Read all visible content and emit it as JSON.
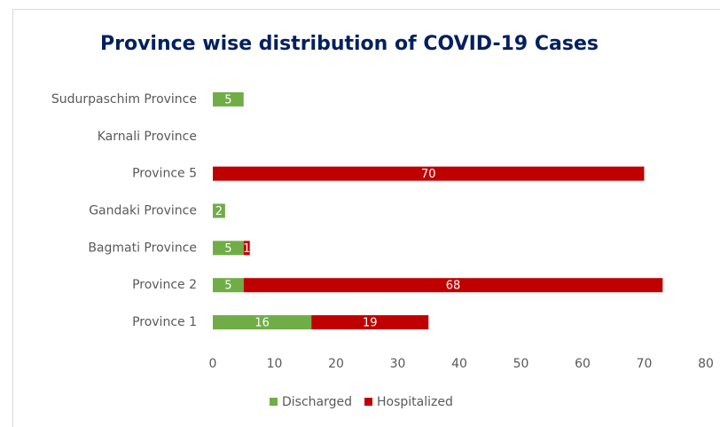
{
  "chart_data": {
    "type": "stacked_barh",
    "title": "Province wise distribution of COVID-19 Cases",
    "categories": [
      "Sudurpaschim Province",
      "Karnali Province",
      "Province 5",
      "Gandaki Province",
      "Bagmati Province",
      "Province 2",
      "Province 1"
    ],
    "series": [
      {
        "name": "Discharged",
        "color": "#70ad47",
        "values": [
          5,
          null,
          null,
          2,
          5,
          5,
          16
        ]
      },
      {
        "name": "Hospitalized",
        "color": "#c00000",
        "values": [
          null,
          null,
          70,
          null,
          1,
          68,
          19
        ]
      }
    ],
    "xlim": [
      0,
      80
    ],
    "xticks": [
      0,
      10,
      20,
      30,
      40,
      50,
      60,
      70,
      80
    ],
    "legend": "bottom"
  }
}
